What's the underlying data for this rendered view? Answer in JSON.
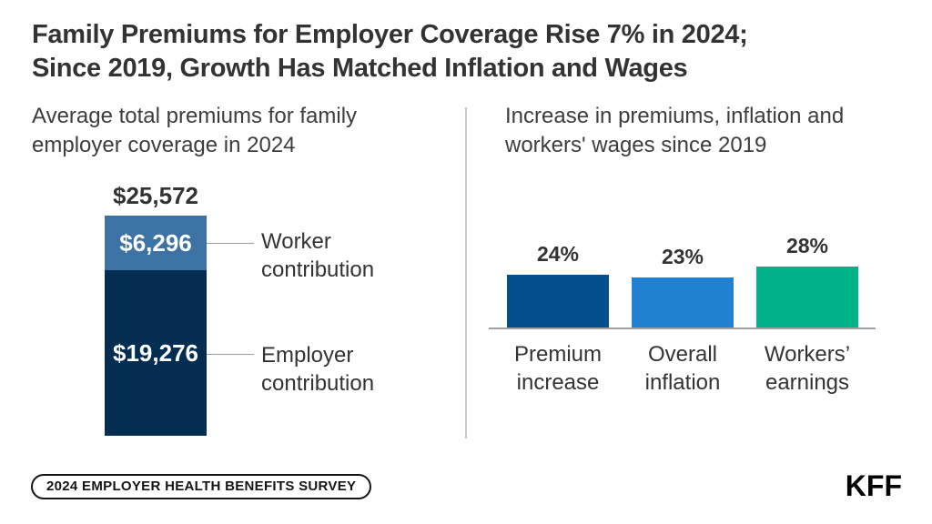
{
  "title": {
    "line1": "Family Premiums for Employer Coverage Rise 7% in 2024;",
    "line2": "Since 2019, Growth Has Matched Inflation and Wages"
  },
  "left_panel": {
    "subtitle": "Average total premiums for family employer coverage in 2024",
    "bar": {
      "total_value": 25572,
      "total_label": "$25,572",
      "segments": [
        {
          "name": "Worker contribution",
          "value": 6296,
          "value_label": "$6,296",
          "color": "#3c72a4"
        },
        {
          "name": "Employer contribution",
          "value": 19276,
          "value_label": "$19,276",
          "color": "#032e52"
        }
      ]
    }
  },
  "right_panel": {
    "subtitle": "Increase in premiums, inflation and workers' wages since 2019",
    "bars": [
      {
        "label": "Premium increase",
        "value": 24,
        "value_label": "24%",
        "color": "#04508e"
      },
      {
        "label": "Overall inflation",
        "value": 23,
        "value_label": "23%",
        "color": "#2080d2"
      },
      {
        "label": "Workers’ earnings",
        "value": 28,
        "value_label": "28%",
        "color": "#00b287"
      }
    ]
  },
  "footer": {
    "badge": "2024 EMPLOYER HEALTH BENEFITS SURVEY",
    "logo": "KFF"
  },
  "colors": {
    "worker_blue": "#3c72a4",
    "employer_navy": "#032e52",
    "premium_navy": "#04508e",
    "inflation_blue": "#2080d2",
    "earnings_green": "#00b287",
    "text_dark": "#333333",
    "divider_gray": "#c9c9c9",
    "axis_gray": "#a0a0a0"
  },
  "chart_data": [
    {
      "type": "bar",
      "subtype": "stacked",
      "title": "Average total premiums for family employer coverage in 2024",
      "categories": [
        "Family employer coverage 2024"
      ],
      "series": [
        {
          "name": "Worker contribution",
          "values": [
            6296
          ],
          "color": "#3c72a4"
        },
        {
          "name": "Employer contribution",
          "values": [
            19276
          ],
          "color": "#032e52"
        }
      ],
      "total": 25572,
      "total_label": "$25,572",
      "data_labels": [
        "$6,296",
        "$19,276"
      ],
      "legend_position": "right-callouts",
      "grid": false
    },
    {
      "type": "bar",
      "title": "Increase in premiums, inflation and workers' wages since 2019",
      "categories": [
        "Premium increase",
        "Overall inflation",
        "Workers’ earnings"
      ],
      "values": [
        24,
        23,
        28
      ],
      "data_labels": [
        "24%",
        "23%",
        "28%"
      ],
      "colors": [
        "#04508e",
        "#2080d2",
        "#00b287"
      ],
      "xlabel": "",
      "ylabel": "",
      "ylim": [
        0,
        30
      ],
      "grid": false,
      "legend_position": "none"
    }
  ]
}
